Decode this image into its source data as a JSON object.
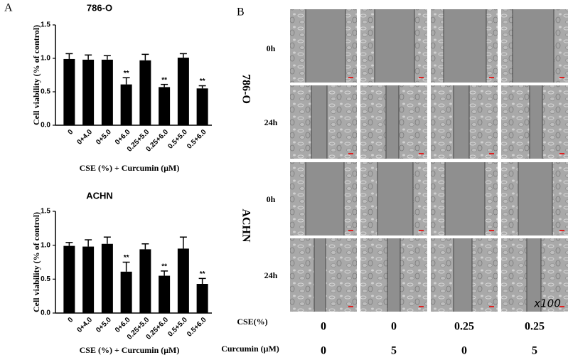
{
  "panel_a": {
    "label": "A"
  },
  "chart_data": [
    {
      "type": "bar",
      "title": "786-O",
      "xlabel": "CSE (%) + Curcumin (μM)",
      "ylabel": "Cell viability (% of control)",
      "color": "#000000",
      "categories": [
        "0",
        "0+4.0",
        "0+5.0",
        "0+6.0",
        "0.25+5.0",
        "0.25+6.0",
        "0.5+5.0",
        "0.5+6.0"
      ],
      "values": [
        0.99,
        0.98,
        0.98,
        0.61,
        0.97,
        0.57,
        1.01,
        0.55
      ],
      "errors": [
        0.08,
        0.07,
        0.06,
        0.1,
        0.09,
        0.04,
        0.06,
        0.04
      ],
      "significance": [
        null,
        null,
        null,
        "**",
        null,
        "**",
        null,
        "**"
      ],
      "ylim": [
        0,
        1.5
      ],
      "yticks": [
        {
          "value": 0,
          "label": "0.0"
        },
        0.5,
        {
          "value": 1,
          "label": "1.0"
        },
        1.5
      ]
    },
    {
      "type": "bar",
      "title": "ACHN",
      "xlabel": "CSE (%) + Curcumin (μM)",
      "ylabel": "Cell viability (% of control)",
      "color": "#000000",
      "categories": [
        "0",
        "0+4.0",
        "0+5.0",
        "0+6.0",
        "0.25+5.0",
        "0.25+6.0",
        "0.5+5.0",
        "0.5+6.0"
      ],
      "values": [
        0.99,
        0.98,
        1.02,
        0.61,
        0.94,
        0.55,
        0.95,
        0.43
      ],
      "errors": [
        0.05,
        0.1,
        0.1,
        0.14,
        0.08,
        0.07,
        0.17,
        0.08
      ],
      "significance": [
        null,
        null,
        null,
        "**",
        null,
        "**",
        null,
        "**"
      ],
      "ylim": [
        0,
        1.5
      ],
      "yticks": [
        {
          "value": 0,
          "label": "0.0"
        },
        0.5,
        {
          "value": 1,
          "label": "1.0"
        },
        1.5
      ]
    }
  ],
  "panel_b": {
    "label": "B",
    "cell_lines": [
      {
        "name": "786-O",
        "timepoints": [
          "0h",
          "24h"
        ]
      },
      {
        "name": "ACHN",
        "timepoints": [
          "0h",
          "24h"
        ]
      }
    ],
    "magnification": "x100",
    "cse_label": "CSE(%)",
    "cse": [
      "0",
      "0",
      "0.25",
      "0.25"
    ],
    "curcumin_label": "Curcumin (μM)",
    "curcumin": [
      "0",
      "5",
      "0",
      "5"
    ]
  }
}
